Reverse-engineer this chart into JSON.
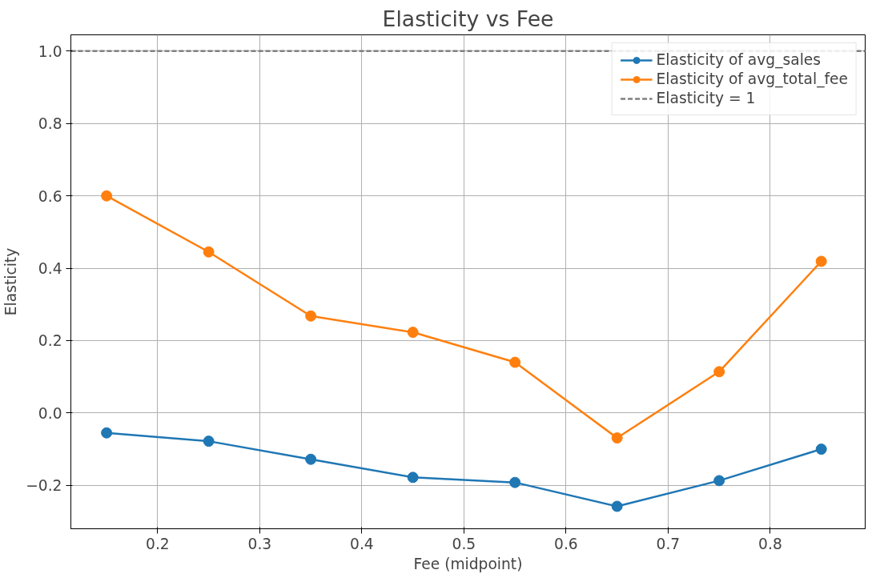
{
  "chart_data": {
    "type": "line",
    "title": "Elasticity vs Fee",
    "xlabel": "Fee (midpoint)",
    "ylabel": "Elasticity",
    "x": [
      0.15,
      0.25,
      0.35,
      0.45,
      0.55,
      0.65,
      0.75,
      0.85
    ],
    "series": [
      {
        "name": "Elasticity of avg_sales",
        "color": "#1f77b4",
        "values": [
          -0.055,
          -0.078,
          -0.128,
          -0.178,
          -0.192,
          -0.258,
          -0.187,
          -0.1
        ]
      },
      {
        "name": "Elasticity of avg_total_fee",
        "color": "#ff7f0e",
        "values": [
          0.6,
          0.445,
          0.268,
          0.223,
          0.14,
          -0.069,
          0.114,
          0.419
        ]
      }
    ],
    "ref_lines": [
      {
        "axis": "y",
        "value": 1.0,
        "label": "Elasticity = 1",
        "color": "#808080",
        "line_style": "dashed"
      }
    ],
    "xlim": [
      0.115,
      0.893
    ],
    "ylim": [
      -0.32,
      1.045
    ],
    "xticks": [
      0.2,
      0.3,
      0.4,
      0.5,
      0.6,
      0.7,
      0.8
    ],
    "yticks": [
      {
        "value": -0.2,
        "label": "−0.2"
      },
      {
        "value": 0.0,
        "label": "0.0"
      },
      {
        "value": 0.2,
        "label": "0.2"
      },
      {
        "value": 0.4,
        "label": "0.4"
      },
      {
        "value": 0.6,
        "label": "0.6"
      },
      {
        "value": 0.8,
        "label": "0.8"
      },
      {
        "value": 1.0,
        "label": "1.0"
      }
    ],
    "grid": true,
    "legend": "top right",
    "marker": "circle",
    "line_style": "solid"
  }
}
